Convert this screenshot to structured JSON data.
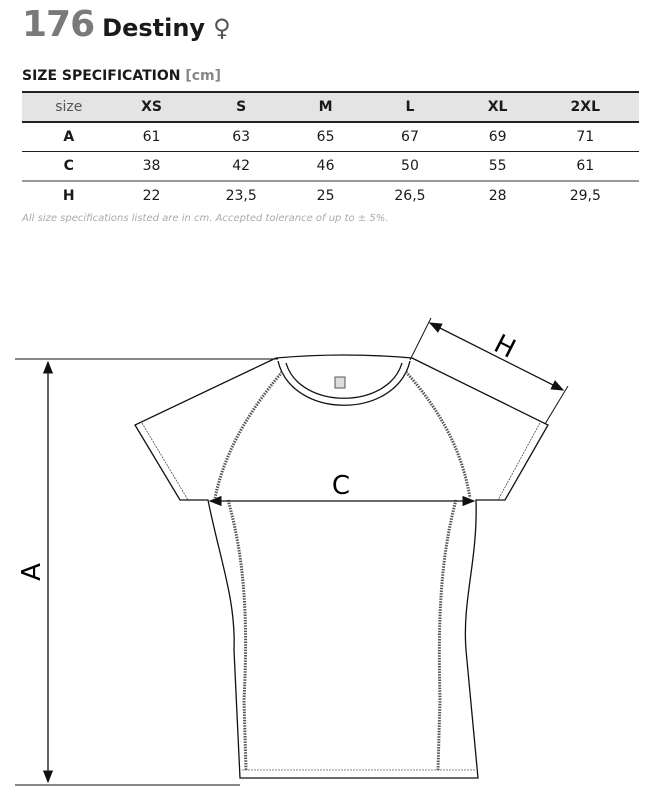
{
  "header": {
    "number": "176",
    "name": "Destiny",
    "gender_symbol": "♀"
  },
  "spec": {
    "title": "SIZE SPECIFICATION",
    "unit": "[cm]"
  },
  "table": {
    "columns": [
      "size",
      "XS",
      "S",
      "M",
      "L",
      "XL",
      "2XL"
    ],
    "rows": [
      {
        "label": "A",
        "values": [
          "61",
          "63",
          "65",
          "67",
          "69",
          "71"
        ]
      },
      {
        "label": "C",
        "values": [
          "38",
          "42",
          "46",
          "50",
          "55",
          "61"
        ]
      },
      {
        "label": "H",
        "values": [
          "22",
          "23,5",
          "25",
          "26,5",
          "28",
          "29,5"
        ]
      }
    ]
  },
  "note": "All size specifications listed are in cm. Accepted tolerance of up to ± 5%.",
  "diagram": {
    "label_a": "A",
    "label_c": "C",
    "label_h": "H"
  }
}
